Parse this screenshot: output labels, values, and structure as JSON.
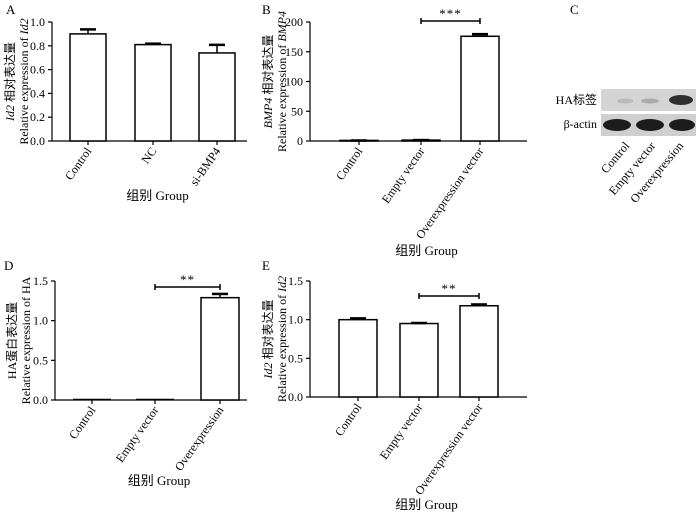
{
  "panels": {
    "A": "A",
    "B": "B",
    "C": "C",
    "D": "D",
    "E": "E"
  },
  "chart_data": [
    {
      "id": "A",
      "type": "bar",
      "panel_label": "A",
      "categories": [
        "Control",
        "NC",
        "si-BMP4"
      ],
      "values": [
        0.9,
        0.81,
        0.74
      ],
      "errors": [
        0.04,
        0.01,
        0.07
      ],
      "ylim": [
        0,
        1.0
      ],
      "yticks": [
        "0.0",
        "0.2",
        "0.4",
        "0.6",
        "0.8",
        "1.0"
      ],
      "ylabel_cn": "相对表达量",
      "ylabel_italic": "Id2",
      "ylabel_en": "Relative expression of ",
      "xlabel": "组别 Group",
      "significance": []
    },
    {
      "id": "B",
      "type": "bar",
      "panel_label": "B",
      "categories": [
        "Control",
        "Empty vector",
        "Overexpression vector"
      ],
      "values": [
        1,
        1.5,
        176
      ],
      "errors": [
        0.3,
        0.5,
        4
      ],
      "ylim": [
        0,
        200
      ],
      "yticks": [
        "0",
        "50",
        "100",
        "150",
        "200"
      ],
      "ylabel_cn": "相对表达量",
      "ylabel_italic": "BMP4",
      "ylabel_en": "Relative expression of ",
      "xlabel": "组别 Group",
      "significance": [
        {
          "from": 1,
          "to": 2,
          "label": "***"
        }
      ]
    },
    {
      "id": "D",
      "type": "bar",
      "panel_label": "D",
      "categories": [
        "Control",
        "Empty vector",
        "Overexpression"
      ],
      "values": [
        0,
        0,
        1.29
      ],
      "errors": [
        0,
        0,
        0.05
      ],
      "ylim": [
        0,
        1.5
      ],
      "yticks": [
        "0.0",
        "0.5",
        "1.0",
        "1.5"
      ],
      "ylabel_cn": "HA蛋白表达量",
      "ylabel_italic": "",
      "ylabel_en": "Relative expression of HA",
      "xlabel": "组别 Group",
      "significance": [
        {
          "from": 1,
          "to": 2,
          "label": "**"
        }
      ]
    },
    {
      "id": "E",
      "type": "bar",
      "panel_label": "E",
      "categories": [
        "Control",
        "Empty vector",
        "Overexpression vector"
      ],
      "values": [
        1.0,
        0.95,
        1.18
      ],
      "errors": [
        0.02,
        0.01,
        0.02
      ],
      "ylim": [
        0,
        1.5
      ],
      "yticks": [
        "0.0",
        "0.5",
        "1.0",
        "1.5"
      ],
      "ylabel_cn": "相对表达量",
      "ylabel_italic": "Id2",
      "ylabel_en": "Relative expression of ",
      "xlabel": "组别 Group",
      "significance": [
        {
          "from": 1,
          "to": 2,
          "label": "**"
        }
      ]
    }
  ],
  "blot": {
    "rows": [
      "HA标签",
      "β-actin"
    ],
    "lanes": [
      "Control",
      "Empty vector",
      "Overexpression"
    ]
  }
}
